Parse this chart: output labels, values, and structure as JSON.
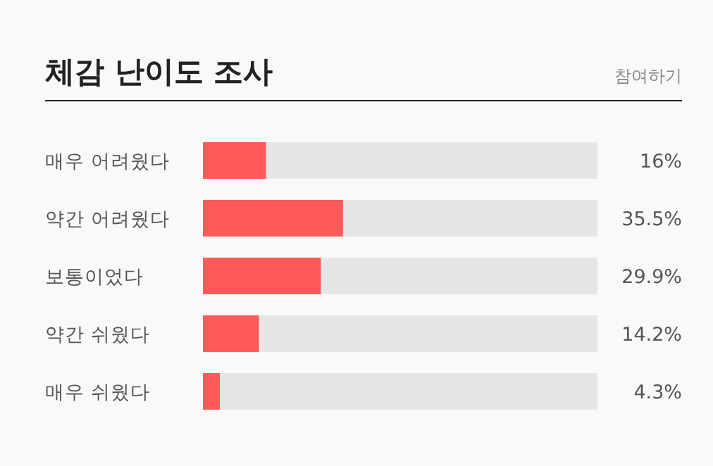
{
  "chart_data": {
    "type": "bar",
    "orientation": "horizontal",
    "title": "체감 난이도 조사",
    "annotations": [
      "참여하기"
    ],
    "categories": [
      "매우 어려웠다",
      "약간 어려웠다",
      "보통이었다",
      "약간 쉬웠다",
      "매우 쉬웠다"
    ],
    "values": [
      16,
      35.5,
      29.9,
      14.2,
      4.3
    ],
    "value_labels": [
      "16%",
      "35.5%",
      "29.9%",
      "14.2%",
      "4.3%"
    ],
    "color": "#ff5a5a",
    "xlim": [
      0,
      100
    ]
  }
}
